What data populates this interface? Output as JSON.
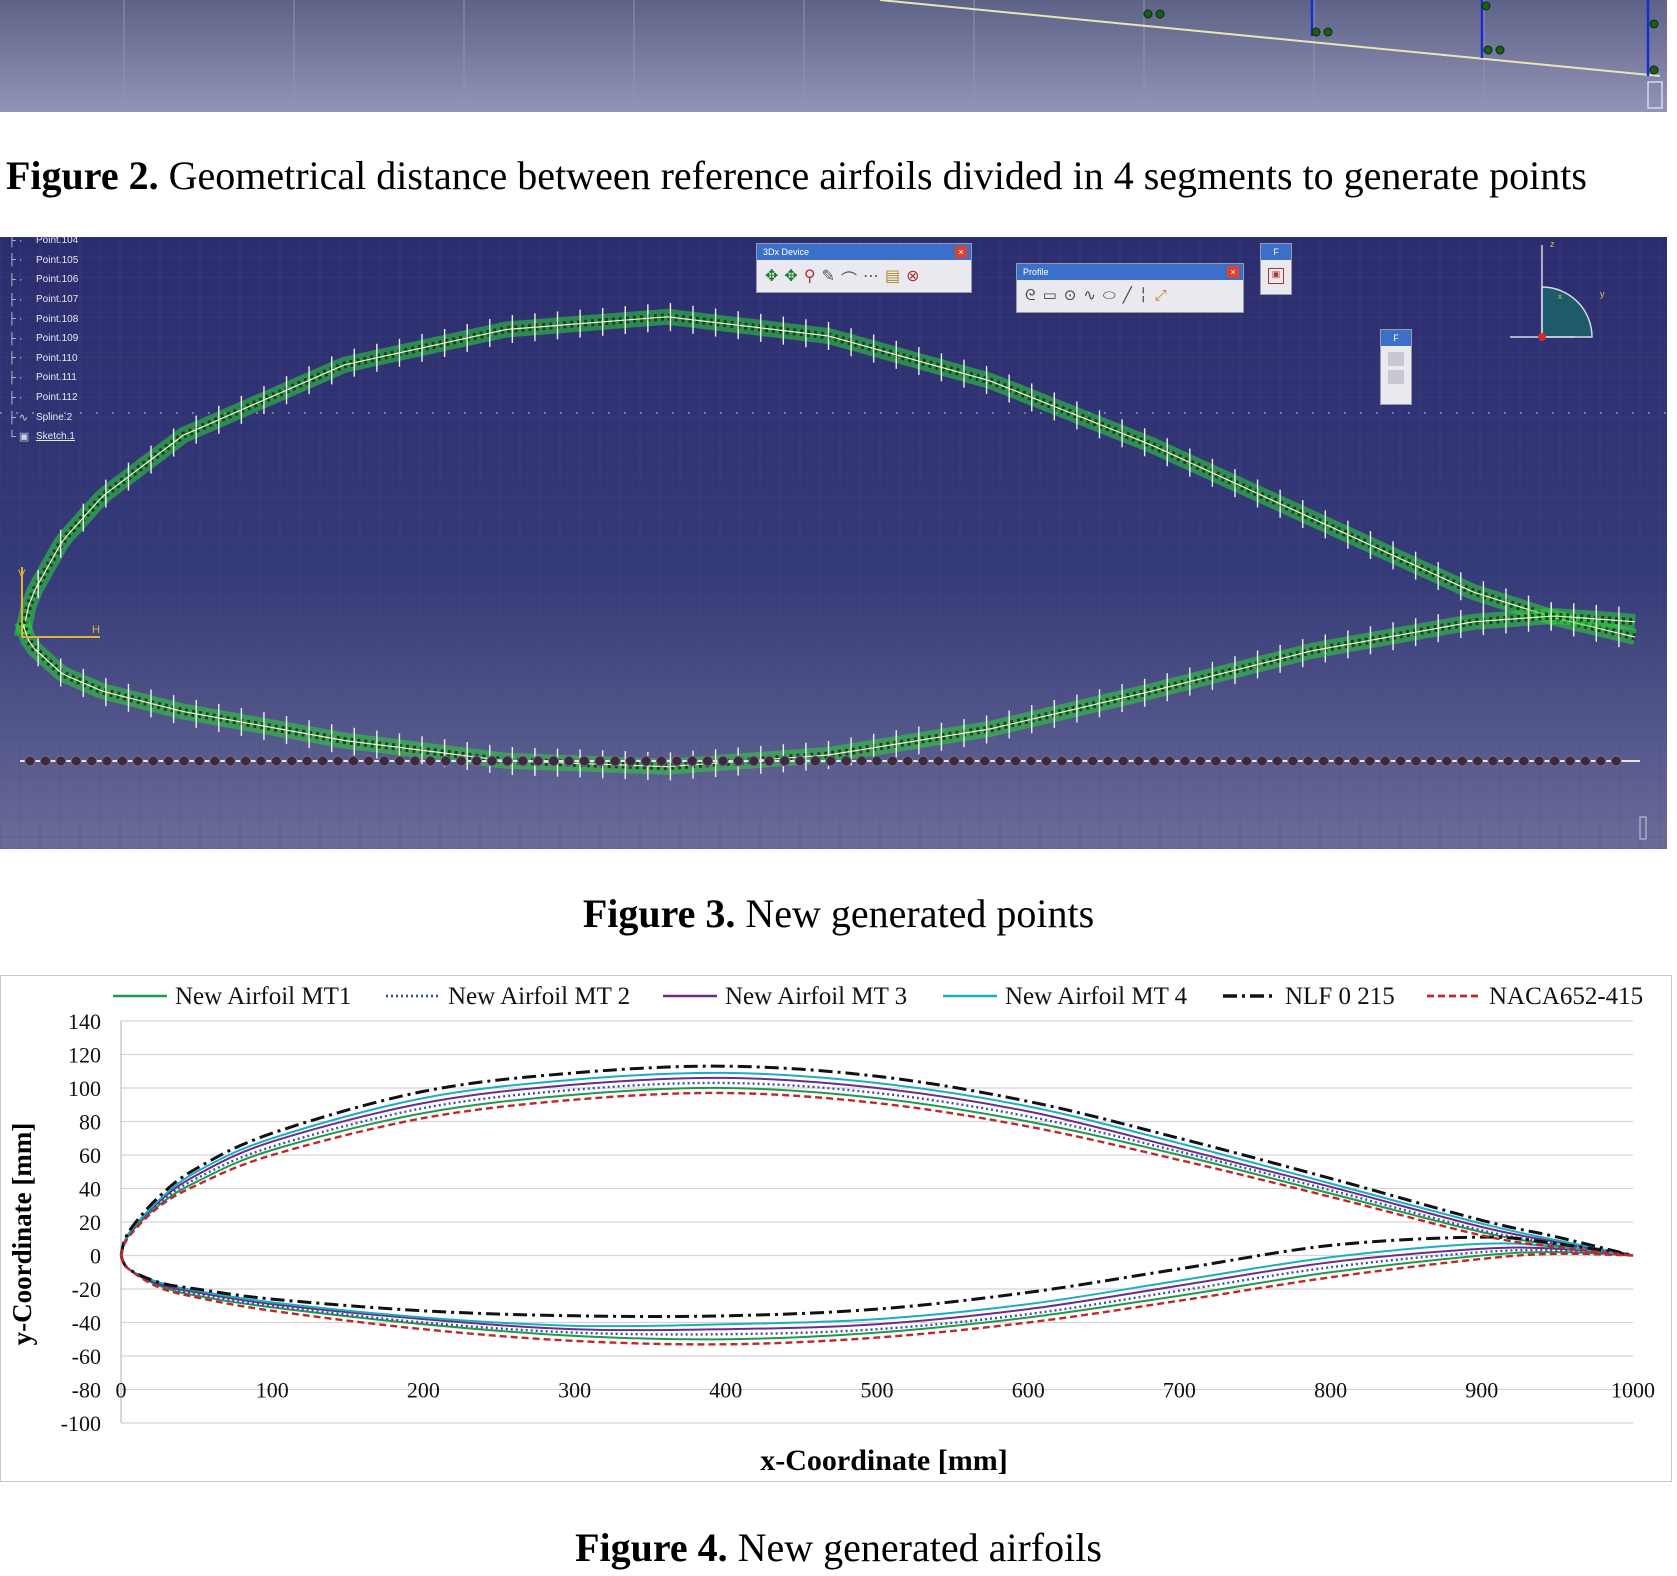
{
  "figure2": {
    "label": "Figure 2.",
    "caption": "Geometrical distance between reference airfoils divided in 4 segments to generate points"
  },
  "figure3": {
    "label": "Figure 3.",
    "caption": "New generated points",
    "tree_items": [
      "Point.104",
      "Point.105",
      "Point.106",
      "Point.107",
      "Point.108",
      "Point.109",
      "Point.110",
      "Point.111",
      "Point.112",
      "Spline.2",
      "Sketch.1"
    ],
    "toolbars": {
      "device_title": "3Dx Device",
      "profile_title": "Profile",
      "small_title": "F"
    },
    "axis_labels": {
      "z": "z",
      "y": "y",
      "x": "x",
      "h": "H",
      "v": "V"
    }
  },
  "figure4": {
    "label": "Figure 4.",
    "caption": "New generated airfoils"
  },
  "chart_data": {
    "type": "line",
    "title": "",
    "xlabel": "x-Coordinate [mm]",
    "ylabel": "y-Coordinate  [mm]",
    "xlim": [
      0,
      1000
    ],
    "ylim": [
      -100,
      140
    ],
    "xticks": [
      "0",
      "100",
      "200",
      "300",
      "400",
      "500",
      "600",
      "700",
      "800",
      "900",
      "1000"
    ],
    "yticks": [
      "140",
      "120",
      "100",
      "80",
      "60",
      "40",
      "20",
      "0",
      "-20",
      "-40",
      "-60",
      "-80",
      "-100"
    ],
    "grid": "horizontal",
    "legend_position": "top",
    "x": [
      0,
      5,
      25,
      50,
      100,
      200,
      300,
      400,
      500,
      600,
      700,
      800,
      900,
      950,
      1000
    ],
    "series": [
      {
        "name": "New Airfoil MT1",
        "color": "#1f9a48",
        "dash": "solid",
        "upper": [
          0,
          12,
          30,
          44,
          63,
          85,
          96,
          100,
          94,
          80,
          60,
          37,
          14,
          6,
          0
        ],
        "lower": [
          0,
          -8,
          -18,
          -24,
          -31,
          -41,
          -48,
          -50,
          -46,
          -37,
          -24,
          -10,
          0,
          2,
          0
        ]
      },
      {
        "name": "New Airfoil MT 2",
        "color": "#3a4fa8",
        "dash": "dotted",
        "upper": [
          0,
          12,
          31,
          46,
          65,
          88,
          99,
          103,
          97,
          83,
          62,
          39,
          15,
          7,
          0
        ],
        "lower": [
          0,
          -8,
          -17,
          -23,
          -30,
          -40,
          -46,
          -47,
          -44,
          -35,
          -21,
          -7,
          2,
          3,
          0
        ]
      },
      {
        "name": "New Airfoil MT 3",
        "color": "#6a2d8a",
        "dash": "solid",
        "upper": [
          0,
          13,
          32,
          48,
          68,
          91,
          102,
          106,
          100,
          86,
          64,
          41,
          17,
          8,
          0
        ],
        "lower": [
          0,
          -8,
          -17,
          -22,
          -29,
          -38,
          -44,
          -44,
          -41,
          -32,
          -18,
          -4,
          4,
          4,
          0
        ]
      },
      {
        "name": "New Airfoil MT 4",
        "color": "#1aaec4",
        "dash": "solid",
        "upper": [
          0,
          13,
          33,
          50,
          70,
          94,
          105,
          109,
          103,
          89,
          67,
          43,
          19,
          9,
          0
        ],
        "lower": [
          0,
          -8,
          -16,
          -21,
          -28,
          -37,
          -42,
          -41,
          -38,
          -29,
          -15,
          -1,
          7,
          5,
          0
        ]
      },
      {
        "name": "NLF 0 215",
        "color": "#111111",
        "dash": "dashdot",
        "upper": [
          0,
          14,
          35,
          52,
          73,
          98,
          109,
          113,
          107,
          92,
          70,
          46,
          21,
          11,
          0
        ],
        "lower": [
          0,
          -8,
          -16,
          -20,
          -26,
          -33,
          -36,
          -36,
          -32,
          -22,
          -8,
          6,
          11,
          7,
          0
        ]
      },
      {
        "name": "NACA652-415",
        "color": "#c0262d",
        "dash": "dashed",
        "upper": [
          0,
          11,
          29,
          42,
          60,
          82,
          93,
          97,
          91,
          77,
          57,
          35,
          12,
          5,
          0
        ],
        "lower": [
          0,
          -8,
          -19,
          -25,
          -33,
          -44,
          -51,
          -53,
          -49,
          -40,
          -27,
          -13,
          -2,
          1,
          0
        ]
      }
    ]
  }
}
